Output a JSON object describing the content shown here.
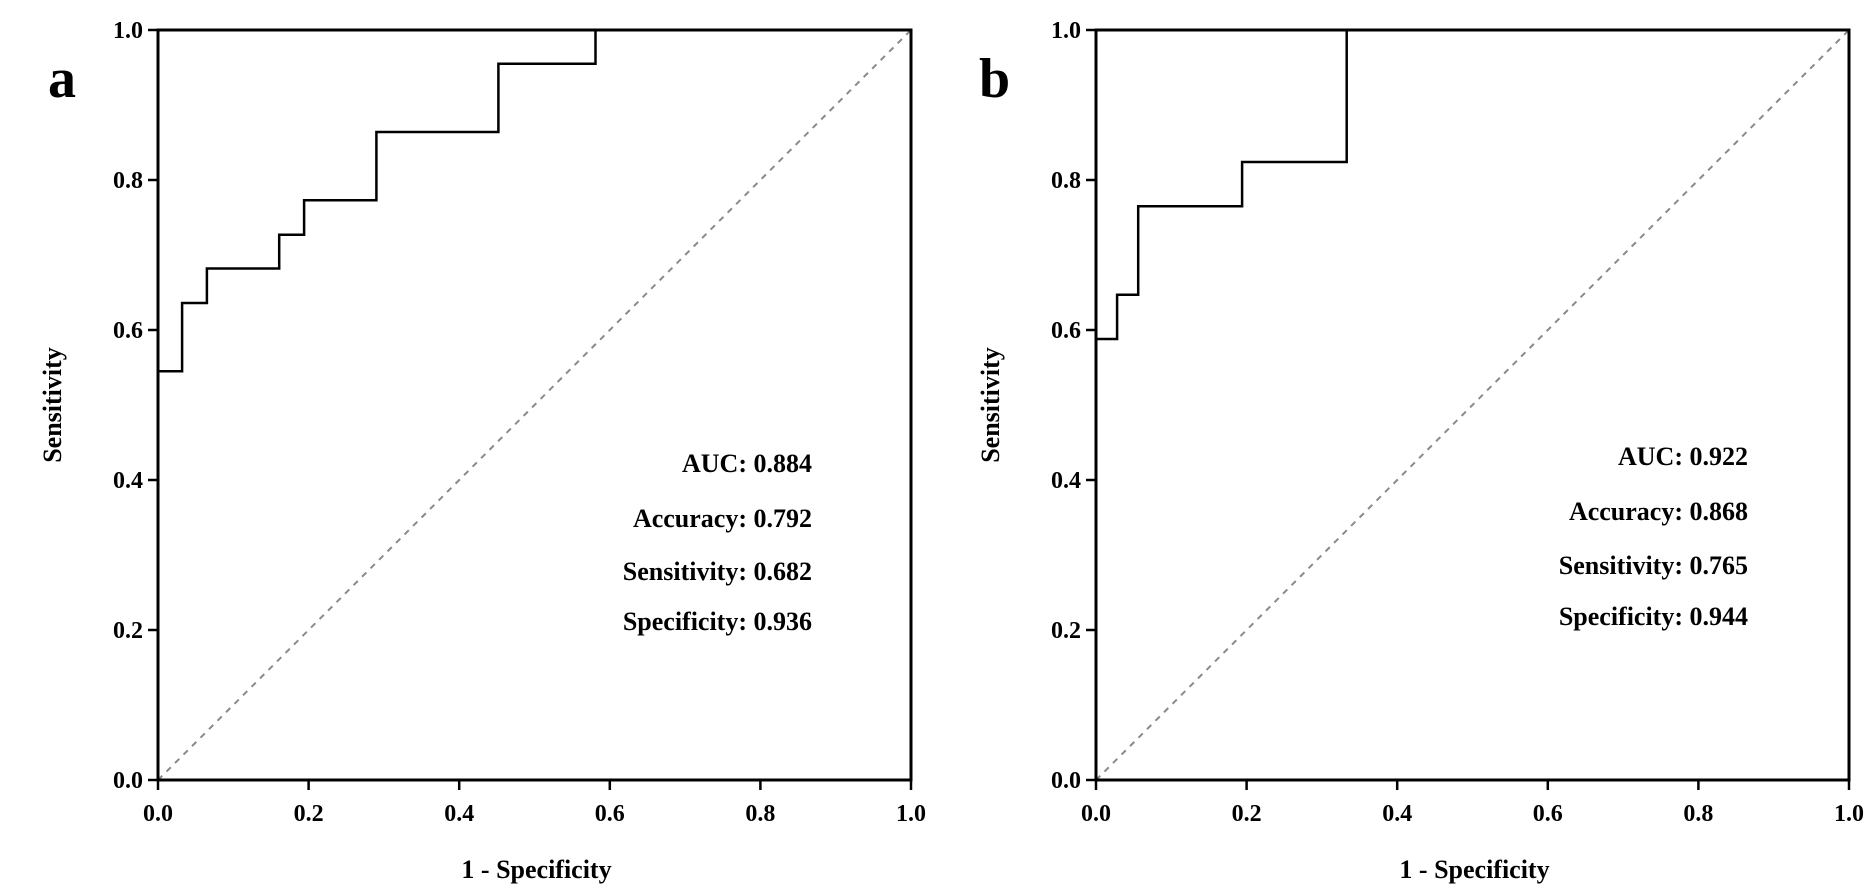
{
  "chart_data": [
    {
      "type": "line",
      "panel_label": "a",
      "xlabel": "1 - Specificity",
      "ylabel": "Sensitivity",
      "xlim": [
        0,
        1
      ],
      "ylim": [
        0,
        1
      ],
      "xticks": [
        "0.0",
        "0.2",
        "0.4",
        "0.6",
        "0.8",
        "1.0"
      ],
      "yticks": [
        "0.0",
        "0.2",
        "0.4",
        "0.6",
        "0.8",
        "1.0"
      ],
      "series": [
        {
          "name": "ROC",
          "style": "step",
          "x": [
            0,
            0,
            0.032,
            0.032,
            0.065,
            0.065,
            0.161,
            0.161,
            0.194,
            0.194,
            0.29,
            0.29,
            0.452,
            0.452,
            0.581,
            0.581,
            1.0
          ],
          "y": [
            0,
            0.545,
            0.545,
            0.636,
            0.636,
            0.682,
            0.682,
            0.727,
            0.727,
            0.773,
            0.773,
            0.864,
            0.864,
            0.955,
            0.955,
            1.0,
            1.0
          ]
        },
        {
          "name": "Reference",
          "style": "dashed",
          "x": [
            0,
            1
          ],
          "y": [
            0,
            1
          ]
        }
      ],
      "annotations": [
        "AUC: 0.884",
        "Accuracy: 0.792",
        "Sensitivity: 0.682",
        "Specificity: 0.936"
      ]
    },
    {
      "type": "line",
      "panel_label": "b",
      "xlabel": "1 - Specificity",
      "ylabel": "Sensitivity",
      "xlim": [
        0,
        1
      ],
      "ylim": [
        0,
        1
      ],
      "xticks": [
        "0.0",
        "0.2",
        "0.4",
        "0.6",
        "0.8",
        "1.0"
      ],
      "yticks": [
        "0.0",
        "0.2",
        "0.4",
        "0.6",
        "0.8",
        "1.0"
      ],
      "series": [
        {
          "name": "ROC",
          "style": "step",
          "x": [
            0,
            0,
            0.028,
            0.028,
            0.056,
            0.056,
            0.194,
            0.194,
            0.333,
            0.333,
            1.0
          ],
          "y": [
            0,
            0.588,
            0.588,
            0.647,
            0.647,
            0.765,
            0.765,
            0.824,
            0.824,
            1.0,
            1.0
          ]
        },
        {
          "name": "Reference",
          "style": "dashed",
          "x": [
            0,
            1
          ],
          "y": [
            0,
            1
          ]
        }
      ],
      "annotations": [
        "AUC: 0.922",
        "Accuracy: 0.868",
        "Sensitivity: 0.765",
        "Specificity: 0.944"
      ]
    }
  ]
}
